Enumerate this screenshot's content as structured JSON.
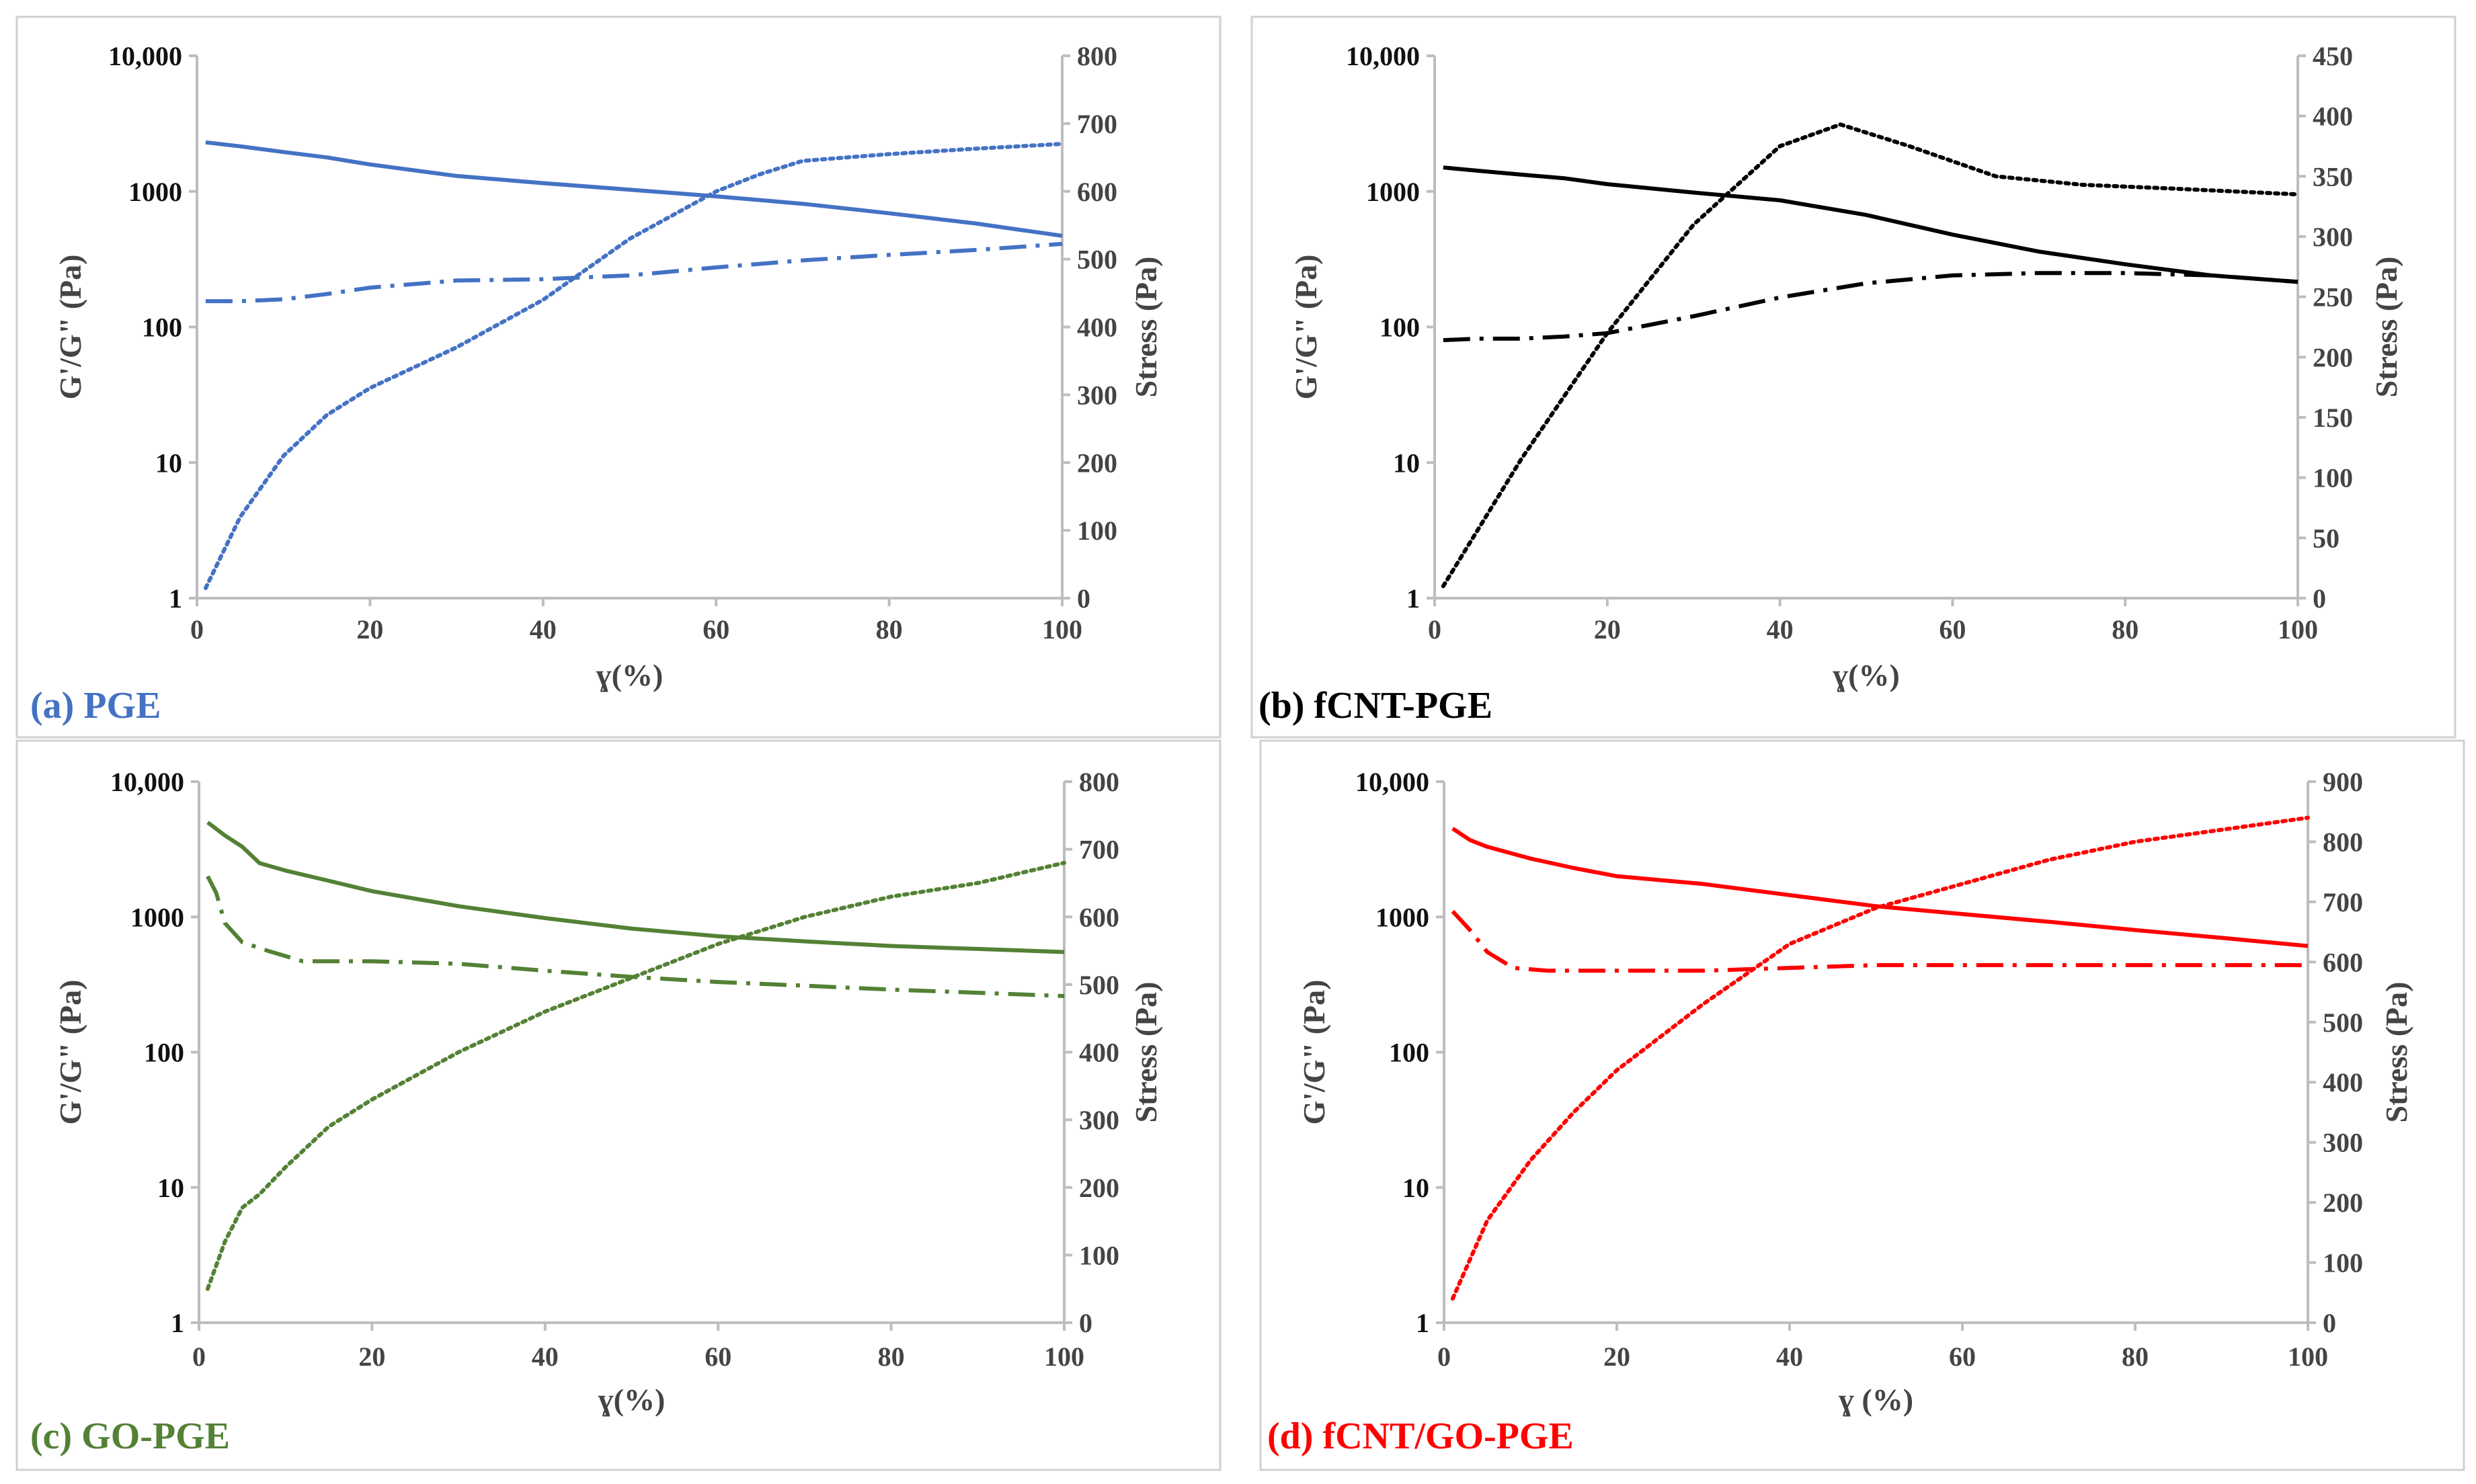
{
  "chart_data": [
    {
      "type": "line",
      "panel_label": "(a) PGE",
      "color": "#4472C4",
      "xlabel": "ɣ(%)",
      "ylabel_left": "G'/G\" (Pa)",
      "ylabel_right": "Stress (Pa)",
      "xlim": [
        0,
        100
      ],
      "ylim_left": [
        1,
        10000
      ],
      "left_scale": "log",
      "ylim_right": [
        0,
        800
      ],
      "x_ticks": [
        "0",
        "20",
        "40",
        "60",
        "80",
        "100"
      ],
      "left_ticks": [
        {
          "v": 1,
          "label": "1"
        },
        {
          "v": 10,
          "label": "10"
        },
        {
          "v": 100,
          "label": "100"
        },
        {
          "v": 1000,
          "label": "1000"
        },
        {
          "v": 10000,
          "label": "10,000"
        }
      ],
      "right_ticks": [
        "0",
        "100",
        "200",
        "300",
        "400",
        "500",
        "600",
        "700",
        "800"
      ],
      "series": [
        {
          "style": "solid",
          "axis": "left",
          "x": [
            1,
            5,
            10,
            15,
            20,
            30,
            40,
            50,
            60,
            70,
            80,
            90,
            100
          ],
          "y": [
            2300,
            2150,
            1950,
            1780,
            1580,
            1300,
            1150,
            1030,
            920,
            810,
            690,
            580,
            470
          ]
        },
        {
          "style": "dashdot",
          "axis": "left",
          "x": [
            1,
            5,
            10,
            15,
            20,
            30,
            40,
            50,
            60,
            70,
            80,
            90,
            100
          ],
          "y": [
            155,
            155,
            160,
            175,
            195,
            220,
            225,
            240,
            275,
            310,
            340,
            370,
            410
          ]
        },
        {
          "style": "dotted",
          "axis": "right",
          "x": [
            1,
            5,
            10,
            15,
            20,
            30,
            40,
            50,
            60,
            65,
            70,
            80,
            90,
            100
          ],
          "y": [
            15,
            120,
            210,
            270,
            310,
            370,
            440,
            530,
            600,
            625,
            645,
            655,
            663,
            670
          ]
        }
      ]
    },
    {
      "type": "line",
      "panel_label": "(b) fCNT-PGE",
      "color": "#000000",
      "xlabel": "ɣ(%)",
      "ylabel_left": "G'/G\" (Pa)",
      "ylabel_right": "Stress (Pa)",
      "xlim": [
        0,
        100
      ],
      "ylim_left": [
        1,
        10000
      ],
      "left_scale": "log",
      "ylim_right": [
        0,
        450
      ],
      "x_ticks": [
        "0",
        "20",
        "40",
        "60",
        "80",
        "100"
      ],
      "left_ticks": [
        {
          "v": 1,
          "label": "1"
        },
        {
          "v": 10,
          "label": "10"
        },
        {
          "v": 100,
          "label": "100"
        },
        {
          "v": 1000,
          "label": "1000"
        },
        {
          "v": 10000,
          "label": "10,000"
        }
      ],
      "right_ticks": [
        "0",
        "50",
        "100",
        "150",
        "200",
        "250",
        "300",
        "350",
        "400",
        "450"
      ],
      "series": [
        {
          "style": "solid",
          "axis": "left",
          "x": [
            1,
            5,
            10,
            15,
            20,
            30,
            40,
            50,
            60,
            70,
            80,
            90,
            100
          ],
          "y": [
            1500,
            1420,
            1330,
            1250,
            1130,
            980,
            860,
            670,
            480,
            360,
            290,
            240,
            215
          ]
        },
        {
          "style": "dashdot",
          "axis": "left",
          "x": [
            1,
            5,
            10,
            15,
            20,
            30,
            40,
            50,
            60,
            70,
            80,
            90,
            100
          ],
          "y": [
            80,
            82,
            82,
            85,
            90,
            120,
            165,
            210,
            240,
            250,
            250,
            240,
            215
          ]
        },
        {
          "style": "dotted",
          "axis": "right",
          "x": [
            1,
            10,
            20,
            30,
            40,
            47,
            55,
            65,
            75,
            85,
            100
          ],
          "y": [
            10,
            115,
            220,
            310,
            375,
            393,
            375,
            350,
            343,
            340,
            335
          ]
        }
      ]
    },
    {
      "type": "line",
      "panel_label": "(c) GO-PGE",
      "color": "#538135",
      "xlabel": "ɣ(%)",
      "ylabel_left": "G'/G\" (Pa)",
      "ylabel_right": "Stress (Pa)",
      "xlim": [
        0,
        100
      ],
      "ylim_left": [
        1,
        10000
      ],
      "left_scale": "log",
      "ylim_right": [
        0,
        800
      ],
      "x_ticks": [
        "0",
        "20",
        "40",
        "60",
        "80",
        "100"
      ],
      "left_ticks": [
        {
          "v": 1,
          "label": "1"
        },
        {
          "v": 10,
          "label": "10"
        },
        {
          "v": 100,
          "label": "100"
        },
        {
          "v": 1000,
          "label": "1000"
        },
        {
          "v": 10000,
          "label": "10,000"
        }
      ],
      "right_ticks": [
        "0",
        "100",
        "200",
        "300",
        "400",
        "500",
        "600",
        "700",
        "800"
      ],
      "series": [
        {
          "style": "solid",
          "axis": "left",
          "x": [
            1,
            3,
            5,
            7,
            10,
            15,
            20,
            30,
            40,
            50,
            60,
            70,
            80,
            90,
            100
          ],
          "y": [
            5000,
            4000,
            3300,
            2500,
            2200,
            1850,
            1550,
            1200,
            980,
            820,
            720,
            660,
            610,
            580,
            550
          ]
        },
        {
          "style": "dashdot",
          "axis": "left",
          "x": [
            1,
            2,
            3,
            5,
            8,
            12,
            20,
            30,
            40,
            50,
            60,
            70,
            80,
            90,
            100
          ],
          "y": [
            2000,
            1500,
            900,
            650,
            560,
            470,
            470,
            450,
            400,
            360,
            330,
            310,
            290,
            275,
            260
          ]
        },
        {
          "style": "dotted",
          "axis": "right",
          "x": [
            1,
            3,
            5,
            7,
            10,
            15,
            20,
            30,
            40,
            50,
            60,
            70,
            80,
            90,
            100
          ],
          "y": [
            50,
            120,
            170,
            190,
            230,
            290,
            330,
            400,
            460,
            510,
            560,
            600,
            630,
            650,
            680
          ]
        }
      ]
    },
    {
      "type": "line",
      "panel_label": "(d) fCNT/GO-PGE",
      "color": "#FF0000",
      "xlabel": "ɣ (%)",
      "ylabel_left": "G'/G\" (Pa)",
      "ylabel_right": "Stress (Pa)",
      "xlim": [
        0,
        100
      ],
      "ylim_left": [
        1,
        10000
      ],
      "left_scale": "log",
      "ylim_right": [
        0,
        900
      ],
      "x_ticks": [
        "0",
        "20",
        "40",
        "60",
        "80",
        "100"
      ],
      "left_ticks": [
        {
          "v": 1,
          "label": "1"
        },
        {
          "v": 10,
          "label": "10"
        },
        {
          "v": 100,
          "label": "100"
        },
        {
          "v": 1000,
          "label": "1000"
        },
        {
          "v": 10000,
          "label": "10,000"
        }
      ],
      "right_ticks": [
        "0",
        "100",
        "200",
        "300",
        "400",
        "500",
        "600",
        "700",
        "800",
        "900"
      ],
      "series": [
        {
          "style": "solid",
          "axis": "left",
          "x": [
            1,
            3,
            5,
            10,
            15,
            20,
            30,
            40,
            50,
            60,
            70,
            80,
            90,
            100
          ],
          "y": [
            4500,
            3700,
            3300,
            2700,
            2300,
            2000,
            1750,
            1450,
            1200,
            1050,
            920,
            800,
            700,
            610
          ]
        },
        {
          "style": "dashdot",
          "axis": "left",
          "x": [
            1,
            3,
            5,
            8,
            12,
            20,
            30,
            40,
            50,
            60,
            70,
            80,
            90,
            100
          ],
          "y": [
            1100,
            800,
            550,
            420,
            400,
            400,
            400,
            420,
            440,
            440,
            440,
            440,
            440,
            440
          ]
        },
        {
          "style": "dotted",
          "axis": "right",
          "x": [
            1,
            5,
            10,
            15,
            20,
            30,
            40,
            50,
            60,
            70,
            80,
            90,
            100
          ],
          "y": [
            40,
            170,
            270,
            350,
            420,
            530,
            630,
            690,
            730,
            770,
            800,
            820,
            840
          ]
        }
      ]
    }
  ]
}
